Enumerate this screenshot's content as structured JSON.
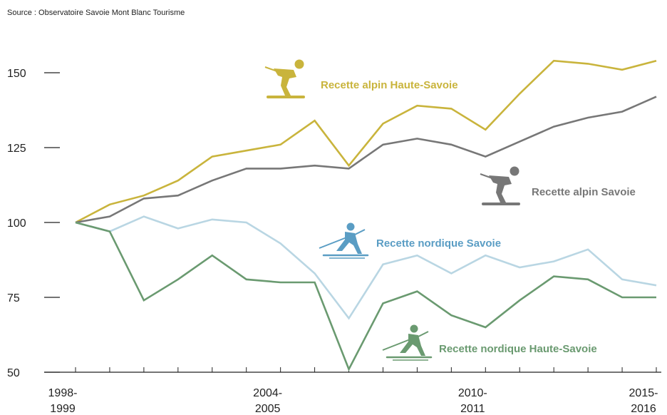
{
  "source": "Source : Observatoire Savoie Mont Blanc Tourisme",
  "chart_data": {
    "type": "line",
    "ylim": [
      50,
      155
    ],
    "yticks": [
      50,
      75,
      100,
      125,
      150
    ],
    "x": [
      0,
      1,
      2,
      3,
      4,
      5,
      6,
      7,
      8,
      9,
      10,
      11,
      12,
      13,
      14,
      15,
      16,
      17
    ],
    "xtick_labels": [
      {
        "x": 0,
        "line1": "1998-",
        "line2": "1999"
      },
      {
        "x": 6,
        "line1": "2004-",
        "line2": "2005"
      },
      {
        "x": 12,
        "line1": "2010-",
        "line2": "2011"
      },
      {
        "x": 17,
        "line1": "2015-",
        "line2": "2016"
      }
    ],
    "grid": false,
    "series": [
      {
        "name": "Recette alpin Haute-Savoie",
        "color": "#c9b43c",
        "icon": "alpine-skier-icon",
        "values": [
          100,
          106,
          109,
          114,
          122,
          124,
          126,
          134,
          119,
          133,
          139,
          138,
          131,
          143,
          154,
          153,
          151,
          154
        ]
      },
      {
        "name": "Recette alpin Savoie",
        "color": "#777777",
        "icon": "alpine-skier-icon",
        "values": [
          100,
          102,
          108,
          109,
          114,
          118,
          118,
          119,
          118,
          126,
          128,
          126,
          122,
          127,
          132,
          135,
          137,
          142
        ]
      },
      {
        "name": "Recette nordique Savoie",
        "color": "#b9d6e3",
        "label_color": "#5a9dc4",
        "icon": "nordic-skier-icon",
        "values": [
          100,
          97,
          102,
          98,
          101,
          100,
          93,
          83,
          68,
          86,
          89,
          83,
          89,
          85,
          87,
          91,
          81,
          79
        ]
      },
      {
        "name": "Recette nordique Haute-Savoie",
        "color": "#6a9a70",
        "icon": "nordic-skier-icon",
        "values": [
          100,
          97,
          74,
          81,
          89,
          81,
          80,
          80,
          51,
          73,
          77,
          69,
          65,
          74,
          82,
          81,
          75,
          75
        ]
      }
    ]
  }
}
